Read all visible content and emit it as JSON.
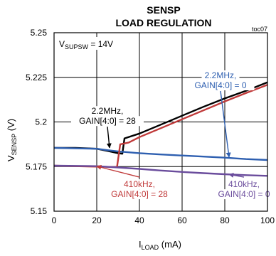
{
  "chart_data": {
    "type": "line",
    "title": "SENSP",
    "subtitle": "LOAD REGULATION",
    "tag": "toc07",
    "xlabel": {
      "main": "I",
      "sub": "LOAD",
      "unit": " (mA)"
    },
    "ylabel": {
      "main": "V",
      "sub": "SENSP",
      "unit": " (V)"
    },
    "xlim": [
      0,
      100
    ],
    "ylim": [
      5.15,
      5.25
    ],
    "xticks": [
      "0",
      "20",
      "40",
      "60",
      "80",
      "100"
    ],
    "yticks": [
      "5.15",
      "5.175",
      "5.2",
      "5.225",
      "5.25"
    ],
    "grid": true,
    "condition": {
      "main": "V",
      "sub": "SUPSW",
      "rest": " = 14V"
    },
    "series": [
      {
        "color": "#000000",
        "x": [
          0,
          10,
          20,
          25,
          30,
          32,
          33,
          40,
          50,
          60,
          70,
          80,
          90,
          100
        ],
        "y": [
          5.1855,
          5.1855,
          5.185,
          5.1838,
          5.1825,
          5.1822,
          5.1908,
          5.1935,
          5.1985,
          5.2035,
          5.2085,
          5.2132,
          5.2175,
          5.2222
        ]
      },
      {
        "color": "#2e5fb0",
        "x": [
          0,
          20,
          25,
          30,
          40,
          50,
          60,
          70,
          80,
          90,
          100
        ],
        "y": [
          5.1855,
          5.185,
          5.1842,
          5.1835,
          5.1825,
          5.1818,
          5.1812,
          5.1806,
          5.18,
          5.1792,
          5.1787
        ]
      },
      {
        "color": "#c03a3a",
        "x": [
          0,
          10,
          20,
          27,
          29.5,
          31,
          35,
          40,
          50,
          60,
          70,
          80,
          90,
          100
        ],
        "y": [
          5.1755,
          5.1752,
          5.175,
          5.1748,
          5.1748,
          5.1875,
          5.1885,
          5.1915,
          5.1965,
          5.2015,
          5.2065,
          5.2115,
          5.2162,
          5.2208
        ]
      },
      {
        "color": "#6a4c9c",
        "x": [
          0,
          20,
          30,
          40,
          50,
          60,
          70,
          80,
          90,
          100
        ],
        "y": [
          5.1755,
          5.1752,
          5.1745,
          5.1737,
          5.1728,
          5.172,
          5.1713,
          5.1707,
          5.1702,
          5.1698
        ]
      }
    ],
    "annotations": [
      {
        "lines": [
          "2.2MHz,",
          "GAIN[4:0] = 28"
        ],
        "color": "#000000",
        "at": [
          25,
          5.2045
        ],
        "arrow_to": [
          26,
          5.1855
        ]
      },
      {
        "lines": [
          "2.2MHz,",
          "GAIN[4:0] = 0"
        ],
        "color": "#2e5fb0",
        "at": [
          78,
          5.2245
        ],
        "arrow_to": [
          82,
          5.1803
        ]
      },
      {
        "lines": [
          "410kHz,",
          "GAIN[4:0] = 28"
        ],
        "color": "#c03a3a",
        "at": [
          40,
          5.1635
        ],
        "arrow_to": [
          20,
          5.1752
        ]
      },
      {
        "lines": [
          "410kHz,",
          "GAIN[4:0] = 0"
        ],
        "color": "#6a4c9c",
        "at": [
          89,
          5.1635
        ],
        "arrow_to": [
          82,
          5.1706
        ]
      }
    ]
  }
}
